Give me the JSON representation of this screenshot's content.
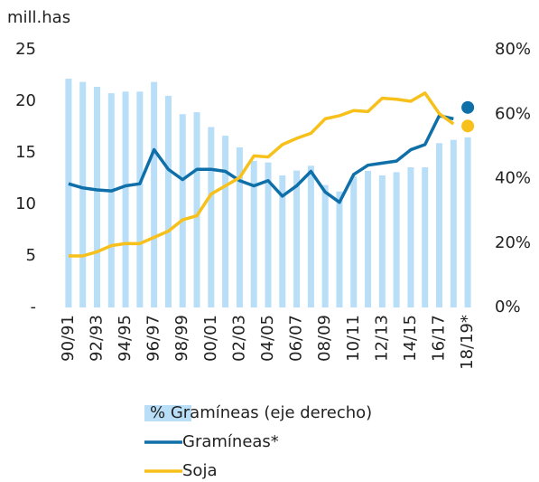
{
  "chart_data": {
    "type": "bar",
    "y_label": "mill.has",
    "categories": [
      "90/91",
      null,
      "92/93",
      null,
      "94/95",
      null,
      "96/97",
      null,
      "98/99",
      null,
      "00/01",
      null,
      "02/03",
      null,
      "04/05",
      null,
      "06/07",
      null,
      "08/09",
      null,
      "10/11",
      null,
      "12/13",
      null,
      "14/15",
      null,
      "16/17",
      null,
      "18/19*"
    ],
    "series": [
      {
        "name": "% Gramíneas (eje derecho)",
        "type": "bar",
        "axis": "y2",
        "color": "#b8def8",
        "values": [
          71,
          70,
          68.5,
          66.5,
          67,
          67,
          70,
          65.7,
          60,
          60.6,
          56,
          53.3,
          49.7,
          45.5,
          45,
          41,
          42.5,
          44,
          38,
          36,
          40.7,
          42.4,
          41,
          42,
          43.5,
          43.5,
          51,
          52,
          52.8
        ]
      },
      {
        "name": "Gramíneas*",
        "type": "line",
        "color": "#0f6fa8",
        "values": [
          12.0,
          11.6,
          11.4,
          11.3,
          11.8,
          12.0,
          15.3,
          13.4,
          12.4,
          13.4,
          13.4,
          13.2,
          12.3,
          11.8,
          12.3,
          10.8,
          11.8,
          13.2,
          11.2,
          10.2,
          12.9,
          13.8,
          14.0,
          14.2,
          15.3,
          15.8,
          18.6,
          18.3,
          19.4
        ]
      },
      {
        "name": "Soja",
        "type": "line",
        "color": "#f7c01a",
        "values": [
          5.0,
          5.0,
          5.4,
          6.0,
          6.2,
          6.2,
          6.8,
          7.4,
          8.5,
          8.9,
          11.0,
          11.8,
          12.6,
          14.7,
          14.6,
          15.8,
          16.4,
          16.9,
          18.3,
          18.6,
          19.1,
          19.0,
          20.3,
          20.2,
          20.0,
          20.8,
          18.8,
          17.8,
          17.6
        ]
      }
    ],
    "ylim": [
      0,
      25
    ],
    "yticks": [
      {
        "value": 0,
        "label": "-"
      },
      5,
      10,
      15,
      20,
      25
    ],
    "y2lim": [
      0,
      80
    ],
    "y2ticks": [
      {
        "value": 0,
        "label": "0%"
      },
      {
        "value": 20,
        "label": "20%"
      },
      {
        "value": 40,
        "label": "40%"
      },
      {
        "value": 60,
        "label": "60%"
      },
      {
        "value": 80,
        "label": "80%"
      }
    ],
    "legend": "bottom"
  }
}
